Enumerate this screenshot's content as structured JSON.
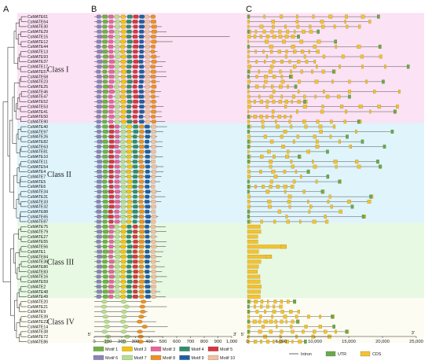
{
  "panels": {
    "a": "A",
    "b": "B",
    "c": "C"
  },
  "genes": [
    "CsMATE61",
    "CsMATE64",
    "CsMATE30",
    "CsMATE29",
    "CsMATE15",
    "CsMATE12",
    "CsMATE44",
    "CsMATE13",
    "CsMATE93",
    "CsMATE37",
    "CsMATE17",
    "CsMATE57",
    "CsMATE58",
    "CsMATE23",
    "CsMATE25",
    "CsMATE46",
    "CsMATE47",
    "CsMATE52",
    "CsMATE53",
    "CsMATE41",
    "CsMATE50",
    "CsMATE90",
    "CsMATE40",
    "CsMATE97",
    "CsMATE26",
    "CsMATE82",
    "CsMATE63",
    "CsMATE81",
    "CsMATE10",
    "CsMATE11",
    "CsMATE54",
    "CsMATE4",
    "CsMATE7",
    "CsMATE5",
    "CsMATE6",
    "CsMATE34",
    "CsMATE31",
    "CsMATE33",
    "CsMATE32",
    "CsMATE88",
    "CsMATE65",
    "CsMATE87",
    "CsMATE75",
    "CsMATE79",
    "CsMATE27",
    "CsMATE55",
    "CsMATE56",
    "CsMATE1",
    "CsMATE84",
    "CsMATE36",
    "CsMATE80",
    "CsMATE83",
    "CsMATE16",
    "CsMATE59",
    "CsMATE2",
    "CsMATE48",
    "CsMATE49",
    "CsMATE20",
    "CsMATE21",
    "CsMATE9",
    "CsMATE39",
    "CsMATE22",
    "CsMATE14",
    "CsMATE38",
    "CsMATE72",
    "CsMATE86"
  ],
  "classes": [
    {
      "label": "Class I",
      "color": "#fbe2f4"
    },
    {
      "label": "Class II",
      "color": "#dff4fb"
    },
    {
      "label": "Class III",
      "color": "#e7f8e3"
    },
    {
      "label": "Class IV",
      "color": "#fdfcf3"
    }
  ],
  "motif_axis": {
    "ticks": [
      "0",
      "100",
      "200",
      "300",
      "400",
      "500",
      "600",
      "700",
      "800",
      "900",
      "1,000"
    ],
    "start": "5'",
    "end": "3'"
  },
  "structure_axis": {
    "ticks": [
      "0",
      "5,000",
      "10,000",
      "15,000",
      "20,000",
      "25,000"
    ],
    "start": "5'",
    "end": "3'"
  },
  "motif_legend": [
    {
      "label": "Motif 1",
      "color": "#6db33f"
    },
    {
      "label": "Motif 2",
      "color": "#f5c400"
    },
    {
      "label": "Motif 3",
      "color": "#e8649a"
    },
    {
      "label": "Motif 4",
      "color": "#2f8f6a"
    },
    {
      "label": "Motif 5",
      "color": "#d9363e"
    },
    {
      "label": "Motif 6",
      "color": "#8a85b8"
    },
    {
      "label": "Motif 7",
      "color": "#b6df8a"
    },
    {
      "label": "Motif 8",
      "color": "#f0901e"
    },
    {
      "label": "Motif 9",
      "color": "#1d5fa6"
    },
    {
      "label": "Motif 10",
      "color": "#f4bf9c"
    }
  ],
  "structure_legend": [
    {
      "label": "Intron",
      "color": "#444444"
    },
    {
      "label": "UTR",
      "color": "#6aa84f"
    },
    {
      "label": "CDS",
      "color": "#f2c232"
    }
  ]
}
